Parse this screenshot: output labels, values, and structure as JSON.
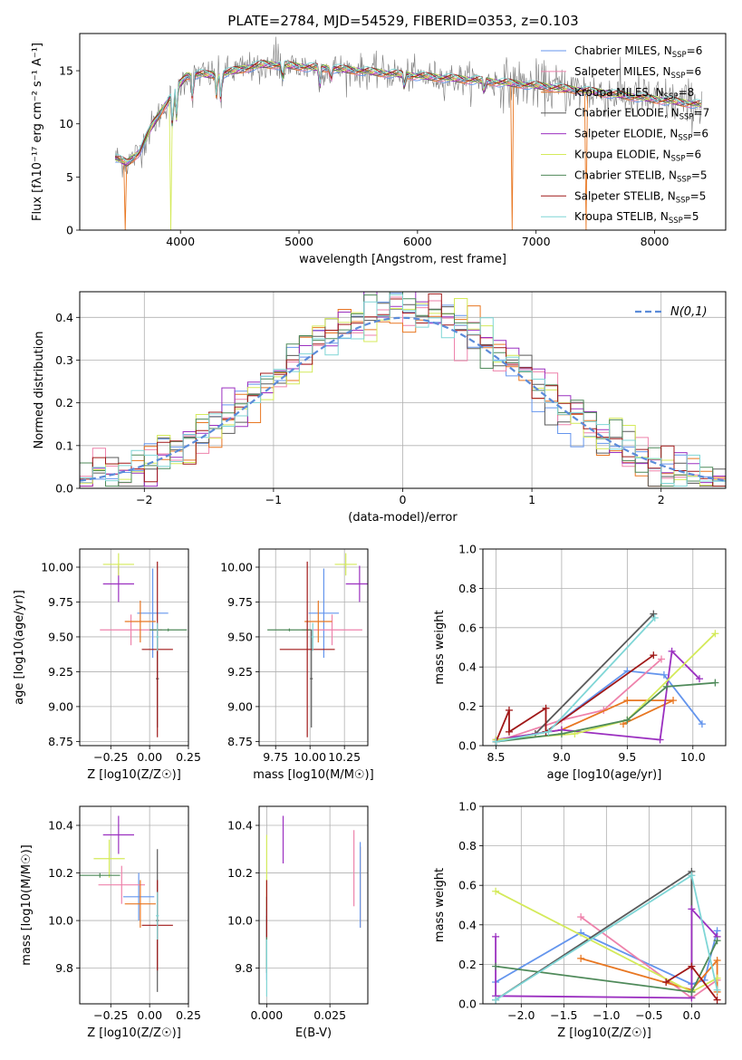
{
  "figure": {
    "title": "PLATE=2784, MJD=54529, FIBERID=0353, z=0.103"
  },
  "colors": {
    "Chabrier MILES": "#6495ed",
    "Salpeter MILES": "#ee82ab",
    "Kroupa MILES": "#e87722",
    "Chabrier ELODIE": "#5a5a5a",
    "Salpeter ELODIE": "#9b30c0",
    "Kroupa ELODIE": "#d4ea5a",
    "Chabrier STELIB": "#4f8a5a",
    "Salpeter STELIB": "#a01818",
    "Kroupa STELIB": "#7fd6d6",
    "gauss": "#5b8bd9"
  },
  "chart_data": [
    {
      "id": "spectrum",
      "type": "line",
      "xlabel": "wavelength [Angstrom, rest frame]",
      "ylabel": "Flux [fλ10⁻¹⁷ erg cm⁻² s⁻¹ A⁻¹]",
      "xlim": [
        3150,
        8600
      ],
      "ylim": [
        0,
        18.5
      ],
      "xticks": [
        4000,
        5000,
        6000,
        7000,
        8000
      ],
      "yticks": [
        0,
        5,
        10,
        15
      ],
      "grid": false,
      "legend": "top-right",
      "continuum": [
        [
          3450,
          6.8
        ],
        [
          3550,
          6.3
        ],
        [
          3650,
          7.3
        ],
        [
          3750,
          9.6
        ],
        [
          3850,
          11.4
        ],
        [
          3950,
          13.1
        ],
        [
          4050,
          14.5
        ],
        [
          4150,
          14.7
        ],
        [
          4250,
          14.6
        ],
        [
          4350,
          14.7
        ],
        [
          4500,
          15.1
        ],
        [
          4700,
          15.6
        ],
        [
          4900,
          15.5
        ],
        [
          5100,
          15.3
        ],
        [
          5300,
          15.2
        ],
        [
          5600,
          14.9
        ],
        [
          6000,
          14.5
        ],
        [
          6500,
          14.1
        ],
        [
          7000,
          13.6
        ],
        [
          7500,
          13.0
        ],
        [
          8000,
          12.3
        ],
        [
          8400,
          11.8
        ]
      ],
      "series": [
        {
          "name": "Chabrier MILES, N_SSP=6",
          "legend": "Chabrier MILES, N",
          "sub": "SSP",
          "tail": "=6"
        },
        {
          "name": "Salpeter MILES, N_SSP=6",
          "legend": "Salpeter MILES, N",
          "sub": "SSP",
          "tail": "=6"
        },
        {
          "name": "Kroupa MILES, N_SSP=8",
          "legend": "Kroupa MILES, N",
          "sub": "SSP",
          "tail": "=8"
        },
        {
          "name": "Chabrier ELODIE, N_SSP=7",
          "legend": "Chabrier ELODIE, N",
          "sub": "SSP",
          "tail": "=7"
        },
        {
          "name": "Salpeter ELODIE, N_SSP=6",
          "legend": "Salpeter ELODIE, N",
          "sub": "SSP",
          "tail": "=6"
        },
        {
          "name": "Kroupa ELODIE, N_SSP=6",
          "legend": "Kroupa ELODIE, N",
          "sub": "SSP",
          "tail": "=6"
        },
        {
          "name": "Chabrier STELIB, N_SSP=5",
          "legend": "Chabrier STELIB, N",
          "sub": "SSP",
          "tail": "=5"
        },
        {
          "name": "Salpeter STELIB, N_SSP=5",
          "legend": "Salpeter STELIB, N",
          "sub": "SSP",
          "tail": "=5"
        },
        {
          "name": "Kroupa STELIB, N_SSP=5",
          "legend": "Kroupa STELIB, N",
          "sub": "SSP",
          "tail": "=5"
        }
      ]
    },
    {
      "id": "residuals",
      "type": "histogram",
      "xlabel": "(data-model)/error",
      "ylabel": "Normed distribution",
      "xlim": [
        -2.5,
        2.5
      ],
      "ylim": [
        0,
        0.46
      ],
      "xticks": [
        -2,
        -1,
        0,
        1,
        2
      ],
      "yticks": [
        0.0,
        0.1,
        0.2,
        0.3,
        0.4
      ],
      "grid": true,
      "legend": "top-right",
      "gauss_label": "N(0,1)",
      "bin_width": 0.1
    },
    {
      "id": "age-vs-Z",
      "type": "errorbar",
      "xlabel": "Z [log10(Z/Z☉)]",
      "ylabel": "age [log10(age/yr)]",
      "xlim": [
        -0.45,
        0.25
      ],
      "ylim": [
        8.72,
        10.13
      ],
      "xticks": [
        -0.25,
        0.0,
        0.25
      ],
      "yticks": [
        8.75,
        9.0,
        9.25,
        9.5,
        9.75,
        10.0
      ],
      "grid": true,
      "points": [
        {
          "model": "Chabrier MILES",
          "x": 0.02,
          "xerr": 0.1,
          "y": 9.67,
          "yerr": 0.32
        },
        {
          "model": "Salpeter MILES",
          "x": -0.12,
          "xerr": 0.2,
          "y": 9.55,
          "yerr": 0.11
        },
        {
          "model": "Kroupa MILES",
          "x": -0.06,
          "xerr": 0.1,
          "y": 9.61,
          "yerr": 0.15
        },
        {
          "model": "Chabrier ELODIE",
          "x": 0.05,
          "xerr": 0.01,
          "y": 9.2,
          "yerr": 0.35
        },
        {
          "model": "Salpeter ELODIE",
          "x": -0.2,
          "xerr": 0.1,
          "y": 9.88,
          "yerr": 0.13
        },
        {
          "model": "Kroupa ELODIE",
          "x": -0.2,
          "xerr": 0.1,
          "y": 10.02,
          "yerr": 0.08
        },
        {
          "model": "Chabrier STELIB",
          "x": 0.12,
          "xerr": 0.12,
          "y": 9.55,
          "yerr": 0.01
        },
        {
          "model": "Salpeter STELIB",
          "x": 0.05,
          "xerr": 0.1,
          "y": 9.41,
          "yerr": 0.63
        },
        {
          "model": "Kroupa STELIB",
          "x": 0.05,
          "xerr": 0.01,
          "y": 9.5,
          "yerr": 0.1
        }
      ]
    },
    {
      "id": "age-vs-mass",
      "type": "errorbar",
      "xlabel": "mass [log10(M/M☉)]",
      "ylabel": "",
      "xlim": [
        9.63,
        10.42
      ],
      "ylim": [
        8.72,
        10.13
      ],
      "xticks": [
        9.75,
        10.0,
        10.25
      ],
      "yticks": [
        8.75,
        9.0,
        9.25,
        9.5,
        9.75,
        10.0
      ],
      "grid": true,
      "points": [
        {
          "model": "Chabrier MILES",
          "x": 10.1,
          "xerr": 0.11,
          "y": 9.67,
          "yerr": 0.32
        },
        {
          "model": "Salpeter MILES",
          "x": 10.16,
          "xerr": 0.22,
          "y": 9.55,
          "yerr": 0.11
        },
        {
          "model": "Kroupa MILES",
          "x": 10.06,
          "xerr": 0.1,
          "y": 9.61,
          "yerr": 0.15
        },
        {
          "model": "Chabrier ELODIE",
          "x": 10.01,
          "xerr": 0.01,
          "y": 9.2,
          "yerr": 0.35
        },
        {
          "model": "Salpeter ELODIE",
          "x": 10.36,
          "xerr": 0.1,
          "y": 9.88,
          "yerr": 0.13
        },
        {
          "model": "Kroupa ELODIE",
          "x": 10.26,
          "xerr": 0.08,
          "y": 10.02,
          "yerr": 0.08
        },
        {
          "model": "Chabrier STELIB",
          "x": 9.85,
          "xerr": 0.16,
          "y": 9.55,
          "yerr": 0.01
        },
        {
          "model": "Salpeter STELIB",
          "x": 9.98,
          "xerr": 0.2,
          "y": 9.41,
          "yerr": 0.63
        },
        {
          "model": "Kroupa STELIB",
          "x": 10.02,
          "xerr": 0.01,
          "y": 9.5,
          "yerr": 0.1
        }
      ]
    },
    {
      "id": "weight-vs-age",
      "type": "line",
      "xlabel": "age [log10(age/yr)]",
      "ylabel": "mass weight",
      "xlim": [
        8.4,
        10.25
      ],
      "ylim": [
        0,
        1
      ],
      "xticks": [
        8.5,
        9.0,
        9.5,
        10.0
      ],
      "yticks": [
        0.0,
        0.2,
        0.4,
        0.6,
        0.8,
        1.0
      ],
      "grid": true,
      "series": [
        {
          "model": "Chabrier MILES",
          "x": [
            8.5,
            8.88,
            9.5,
            9.78,
            10.07
          ],
          "y": [
            0.02,
            0.07,
            0.38,
            0.36,
            0.11
          ]
        },
        {
          "model": "Salpeter MILES",
          "x": [
            8.5,
            9.0,
            9.32,
            9.76
          ],
          "y": [
            0.02,
            0.13,
            0.18,
            0.44
          ]
        },
        {
          "model": "Kroupa MILES",
          "x": [
            8.5,
            8.8,
            9.0,
            9.5,
            9.85,
            9.47
          ],
          "y": [
            0.03,
            0.06,
            0.08,
            0.23,
            0.23,
            0.11
          ]
        },
        {
          "model": "Chabrier ELODIE",
          "x": [
            8.5,
            8.8,
            9.7
          ],
          "y": [
            0.02,
            0.06,
            0.67
          ]
        },
        {
          "model": "Salpeter ELODIE",
          "x": [
            8.5,
            9.0,
            9.75,
            9.84,
            10.05
          ],
          "y": [
            0.03,
            0.08,
            0.03,
            0.48,
            0.34
          ]
        },
        {
          "model": "Kroupa ELODIE",
          "x": [
            8.5,
            9.1,
            9.5,
            10.17
          ],
          "y": [
            0.03,
            0.06,
            0.13,
            0.57
          ]
        },
        {
          "model": "Chabrier STELIB",
          "x": [
            8.5,
            9.0,
            9.5,
            9.8,
            10.17
          ],
          "y": [
            0.02,
            0.06,
            0.13,
            0.3,
            0.32
          ]
        },
        {
          "model": "Salpeter STELIB",
          "x": [
            8.5,
            8.6,
            8.6,
            8.88,
            8.88,
            9.7
          ],
          "y": [
            0.02,
            0.18,
            0.07,
            0.19,
            0.07,
            0.46
          ]
        },
        {
          "model": "Kroupa STELIB",
          "x": [
            8.5,
            8.9,
            9.71
          ],
          "y": [
            0.02,
            0.07,
            0.65
          ]
        }
      ]
    },
    {
      "id": "mass-vs-Z",
      "type": "errorbar",
      "xlabel": "Z [log10(Z/Z☉)]",
      "ylabel": "mass [log10(M/M☉)]",
      "xlim": [
        -0.45,
        0.25
      ],
      "ylim": [
        9.65,
        10.48
      ],
      "xticks": [
        -0.25,
        0.0,
        0.25
      ],
      "yticks": [
        9.8,
        10.0,
        10.2,
        10.4
      ],
      "grid": true,
      "points": [
        {
          "model": "Chabrier MILES",
          "x": -0.07,
          "xerr": 0.1,
          "y": 10.1,
          "yerr": 0.1
        },
        {
          "model": "Salpeter MILES",
          "x": -0.18,
          "xerr": 0.15,
          "y": 10.15,
          "yerr": 0.08
        },
        {
          "model": "Kroupa MILES",
          "x": -0.06,
          "xerr": 0.1,
          "y": 10.07,
          "yerr": 0.1
        },
        {
          "model": "Chabrier ELODIE",
          "x": 0.05,
          "xerr": 0.01,
          "y": 10.0,
          "yerr": 0.3
        },
        {
          "model": "Salpeter ELODIE",
          "x": -0.2,
          "xerr": 0.1,
          "y": 10.36,
          "yerr": 0.08
        },
        {
          "model": "Kroupa ELODIE",
          "x": -0.26,
          "xerr": 0.1,
          "y": 10.26,
          "yerr": 0.08
        },
        {
          "model": "Chabrier STELIB",
          "x": -0.32,
          "xerr": 0.13,
          "y": 10.19,
          "yerr": 0.01
        },
        {
          "model": "Salpeter STELIB",
          "x": 0.05,
          "xerr": 0.1,
          "y": 9.98,
          "yerr": 0.19
        },
        {
          "model": "Kroupa STELIB",
          "x": 0.05,
          "xerr": 0.01,
          "y": 10.02,
          "yerr": 0.1
        }
      ]
    },
    {
      "id": "mass-vs-EBV",
      "type": "errorbar",
      "xlabel": "E(B-V)",
      "ylabel": "",
      "xlim": [
        -0.003,
        0.04
      ],
      "ylim": [
        9.65,
        10.48
      ],
      "xticks": [
        0.0,
        0.025
      ],
      "yticks": [
        9.8,
        10.0,
        10.2,
        10.4
      ],
      "grid": true,
      "points": [
        {
          "model": "Chabrier MILES",
          "x": 0.0,
          "xerr": 0.0,
          "y": 9.9,
          "yerr": 0.15
        },
        {
          "model": "Salpeter MILES",
          "x": 0.0345,
          "xerr": 0.0,
          "y": 10.22,
          "yerr": 0.16
        },
        {
          "model": "Kroupa MILES",
          "x": 0.037,
          "xerr": 0.0,
          "y": 10.14,
          "yerr": 0.17
        },
        {
          "model": "Chabrier ELODIE",
          "x": 0.0,
          "xerr": 0.0,
          "y": 9.9,
          "yerr": 0.12
        },
        {
          "model": "Salpeter ELODIE",
          "x": 0.0065,
          "xerr": 0.0,
          "y": 10.34,
          "yerr": 0.1
        },
        {
          "model": "Kroupa ELODIE",
          "x": 0.0,
          "xerr": 0.0,
          "y": 10.2,
          "yerr": 0.16
        },
        {
          "model": "Chabrier STELIB",
          "x": 0.0,
          "xerr": 0.0,
          "y": 9.95,
          "yerr": 0.15
        },
        {
          "model": "Salpeter STELIB",
          "x": 0.0,
          "xerr": 0.0,
          "y": 10.05,
          "yerr": 0.12
        },
        {
          "model": "Kroupa STELIB",
          "x": 0.0,
          "xerr": 0.0,
          "y": 9.8,
          "yerr": 0.12
        },
        {
          "model": "Chabrier MILES",
          "x": 0.037,
          "xerr": 0.0,
          "y": 10.15,
          "yerr": 0.18
        }
      ]
    },
    {
      "id": "weight-vs-Z",
      "type": "line",
      "xlabel": "Z [log10(Z/Z☉)]",
      "ylabel": "mass weight",
      "xlim": [
        -2.45,
        0.4
      ],
      "ylim": [
        0,
        1
      ],
      "xticks": [
        -2.0,
        -1.5,
        -1.0,
        -0.5,
        0.0
      ],
      "yticks": [
        0.0,
        0.2,
        0.4,
        0.6,
        0.8,
        1.0
      ],
      "grid": true,
      "series": [
        {
          "model": "Chabrier MILES",
          "x": [
            -2.3,
            -1.3,
            0.0,
            0.15,
            0.3
          ],
          "y": [
            0.11,
            0.36,
            0.1,
            0.12,
            0.37
          ]
        },
        {
          "model": "Salpeter MILES",
          "x": [
            -1.3,
            0.0,
            0.3
          ],
          "y": [
            0.44,
            0.03,
            0.12
          ]
        },
        {
          "model": "Kroupa MILES",
          "x": [
            -1.3,
            0.0,
            0.3,
            0.3
          ],
          "y": [
            0.23,
            0.07,
            0.22,
            0.06
          ]
        },
        {
          "model": "Chabrier ELODIE",
          "x": [
            -2.3,
            0.0,
            0.0
          ],
          "y": [
            0.02,
            0.67,
            0.06
          ]
        },
        {
          "model": "Salpeter ELODIE",
          "x": [
            -2.3,
            -2.3,
            0.0,
            0.0,
            0.3
          ],
          "y": [
            0.34,
            0.04,
            0.03,
            0.48,
            0.34
          ]
        },
        {
          "model": "Kroupa ELODIE",
          "x": [
            -2.3,
            0.0,
            0.3
          ],
          "y": [
            0.57,
            0.06,
            0.13
          ]
        },
        {
          "model": "Chabrier STELIB",
          "x": [
            -2.3,
            0.0,
            0.3
          ],
          "y": [
            0.19,
            0.06,
            0.32
          ]
        },
        {
          "model": "Salpeter STELIB",
          "x": [
            -0.3,
            0.0,
            0.3
          ],
          "y": [
            0.11,
            0.19,
            0.02
          ]
        },
        {
          "model": "Kroupa STELIB",
          "x": [
            -2.3,
            0.0,
            0.3
          ],
          "y": [
            0.02,
            0.65,
            0.07
          ]
        }
      ]
    }
  ]
}
